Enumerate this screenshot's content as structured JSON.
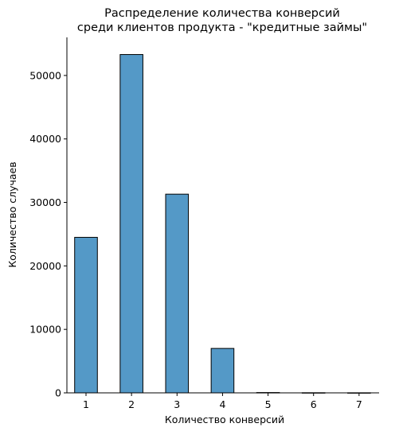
{
  "chart_data": {
    "type": "bar",
    "title_lines": [
      "Распределение количества конверсий",
      "среди клиентов продукта - \"кредитные займы\""
    ],
    "xlabel": "Количество конверсий",
    "ylabel": "Количество случаев",
    "categories": [
      "1",
      "2",
      "3",
      "4",
      "5",
      "6",
      "7"
    ],
    "values": [
      24500,
      53300,
      31300,
      7000,
      50,
      20,
      10
    ],
    "ylim": [
      0,
      56000
    ],
    "yticks": [
      0,
      10000,
      20000,
      30000,
      40000,
      50000
    ],
    "xticks": [
      1,
      2,
      3,
      4,
      5,
      6,
      7
    ],
    "bar_color": "#5499c7",
    "edge_color": "#000000",
    "grid": false,
    "legend": false
  }
}
